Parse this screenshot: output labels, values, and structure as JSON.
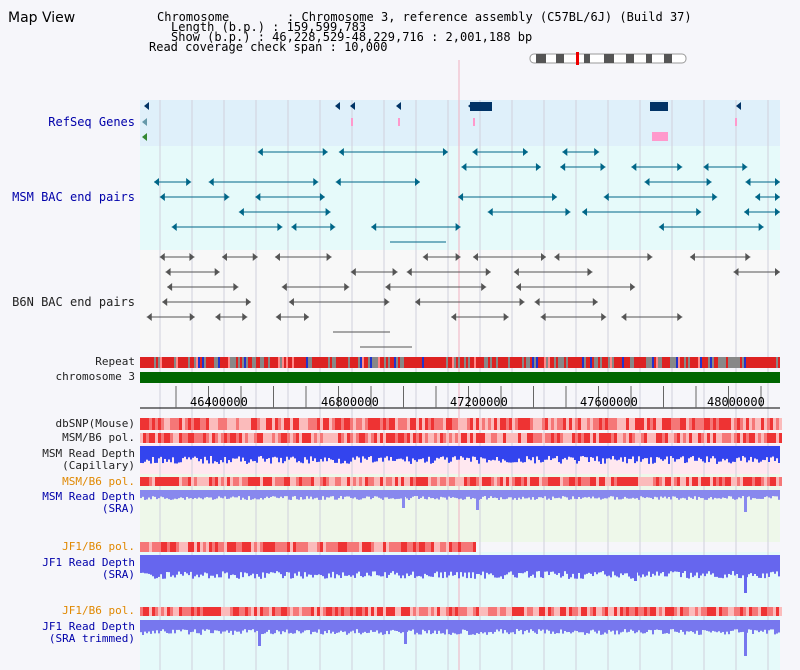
{
  "header": {
    "title": "Map View",
    "chromosome_line": "Chromosome        : Chromosome 3, reference assembly (C57BL/6J) (Build 37)",
    "length_line": "Length (b.p.) : 159,599,783",
    "show_line": "Show (b.p.) : 46,228,529-48,229,716 : 2,001,188 bp",
    "coverage_line": "Read coverage check span : 10,000"
  },
  "tracks": {
    "refseq": "RefSeq Genes",
    "msm_bac": "MSM BAC end pairs",
    "b6n_bac": "B6N BAC end pairs",
    "repeat": "Repeat",
    "chromosome": "chromosome 3",
    "dbsnp": "dbSNP(Mouse)",
    "msm_pol": "MSM/B6 pol.",
    "msm_depth_cap": "MSM Read Depth\n(Capillary)",
    "msm_pol2": "MSM/B6 pol.",
    "msm_depth_sra": "MSM Read Depth\n(SRA)",
    "jf1_pol": "JF1/B6 pol.",
    "jf1_depth_sra": "JF1 Read Depth\n(SRA)",
    "jf1_pol2": "JF1/B6 pol.",
    "jf1_depth_trim": "JF1 Read Depth\n(SRA trimmed)"
  },
  "ruler": {
    "ticks": [
      "46400000",
      "46800000",
      "47200000",
      "47600000",
      "48000000"
    ]
  },
  "colors": {
    "gene": "#003366",
    "bac_msm": "#006688",
    "bac_b6n": "#555555",
    "snp": "#ee4444",
    "depth": "#2222ee",
    "chrom": "#006600"
  }
}
